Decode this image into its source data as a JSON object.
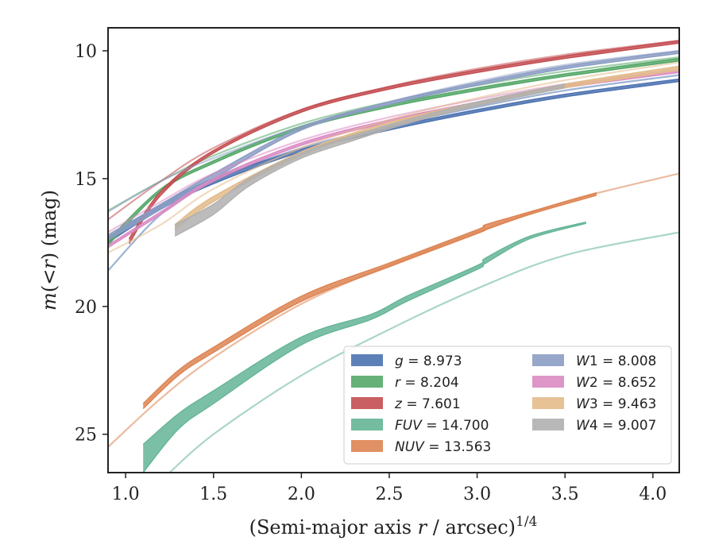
{
  "chart_data": {
    "type": "line",
    "xlabel": "(Semi-major axis r / arcsec)",
    "xlabel_parts": {
      "pre": "(Semi-major axis ",
      "var": "r",
      "post": " / arcsec)",
      "sup": "1/4"
    },
    "ylabel": "m(<r) (mag)",
    "ylabel_parts": {
      "m": "m",
      "open": "(<",
      "r": "r",
      "close": ") (mag)"
    },
    "xlim": [
      0.9,
      4.15
    ],
    "ylim": [
      26.5,
      9.1
    ],
    "y_inverted": true,
    "xticks": [
      1.0,
      1.5,
      2.0,
      2.5,
      3.0,
      3.5,
      4.0
    ],
    "xtick_labels": [
      "1.0",
      "1.5",
      "2.0",
      "2.5",
      "3.0",
      "3.5",
      "4.0"
    ],
    "yticks": [
      10,
      15,
      20,
      25
    ],
    "ytick_labels": [
      "10",
      "15",
      "20",
      "25"
    ],
    "grid": false,
    "legend_placement": "lower-right",
    "series": [
      {
        "name": "g",
        "legend_label": "g = 8.973",
        "color": "#4c72b0",
        "profile": {
          "x": [
            0.9,
            1.2,
            1.5,
            2.0,
            2.5,
            3.0,
            3.5,
            4.15
          ],
          "y": [
            18.6,
            16.4,
            15.1,
            13.8,
            12.95,
            12.2,
            11.55,
            10.95
          ]
        },
        "band": {
          "x": [
            0.9,
            1.2,
            1.5,
            2.0,
            2.5,
            3.0,
            3.5,
            4.15
          ],
          "y1": [
            17.3,
            16.0,
            15.0,
            13.85,
            13.0,
            12.3,
            11.7,
            11.1
          ],
          "y2": [
            17.5,
            16.2,
            15.2,
            13.95,
            13.1,
            12.4,
            11.8,
            11.2
          ]
        }
      },
      {
        "name": "r",
        "legend_label": "r = 8.204",
        "color": "#55a868",
        "profile": {
          "x": [
            0.9,
            1.2,
            1.5,
            2.0,
            2.5,
            3.0,
            3.5,
            4.15
          ],
          "y": [
            16.25,
            15.1,
            14.1,
            12.85,
            12.0,
            11.35,
            10.8,
            10.25
          ]
        },
        "band": {
          "x": [
            0.9,
            1.2,
            1.5,
            2.0,
            2.5,
            3.0,
            3.5,
            4.15
          ],
          "y1": [
            17.4,
            15.4,
            14.3,
            12.95,
            12.1,
            11.45,
            10.9,
            10.3
          ],
          "y2": [
            17.6,
            15.5,
            14.4,
            13.05,
            12.2,
            11.55,
            11.0,
            10.4
          ]
        }
      },
      {
        "name": "z",
        "legend_label": "z = 7.601",
        "color": "#c44e52",
        "profile": {
          "x": [
            0.9,
            1.2,
            1.5,
            2.0,
            2.5,
            3.0,
            3.5,
            4.15
          ],
          "y": [
            16.6,
            15.1,
            13.8,
            12.3,
            11.4,
            10.7,
            10.15,
            9.6
          ]
        },
        "band": {
          "x": [
            1.02,
            1.2,
            1.5,
            2.0,
            2.5,
            3.0,
            3.5,
            4.15
          ],
          "y1": [
            17.35,
            15.5,
            13.9,
            12.3,
            11.4,
            10.75,
            10.2,
            9.6
          ],
          "y2": [
            17.55,
            15.65,
            14.0,
            12.4,
            11.5,
            10.85,
            10.3,
            9.7
          ]
        }
      },
      {
        "name": "FUV",
        "legend_label": "FUV = 14.700",
        "color": "#64b596",
        "profile": {
          "x": [
            1.25,
            1.5,
            2.0,
            2.5,
            3.0,
            3.5,
            4.15
          ],
          "y": [
            26.5,
            25.0,
            22.7,
            20.9,
            19.3,
            18.0,
            17.1
          ]
        },
        "band": {
          "x": [
            1.1,
            1.3,
            1.5,
            2.0,
            2.4,
            2.6,
            3.0,
            3.05,
            3.3,
            3.62
          ],
          "y1": [
            25.4,
            24.2,
            23.3,
            21.2,
            20.3,
            19.6,
            18.4,
            18.1,
            17.25,
            16.7
          ],
          "y2": [
            26.5,
            24.8,
            23.8,
            21.5,
            20.5,
            19.8,
            18.55,
            18.3,
            17.35,
            16.75
          ]
        }
      },
      {
        "name": "NUV",
        "legend_label": "NUV = 13.563",
        "color": "#dd8452",
        "profile": {
          "x": [
            0.9,
            1.2,
            1.5,
            2.0,
            2.5,
            3.0,
            3.5,
            4.15
          ],
          "y": [
            25.5,
            23.6,
            22.0,
            19.9,
            18.4,
            17.1,
            15.9,
            14.8
          ]
        },
        "band": {
          "x": [
            1.1,
            1.3,
            1.5,
            2.0,
            2.5,
            3.0,
            3.05,
            3.3,
            3.68
          ],
          "y1": [
            23.8,
            22.5,
            21.6,
            19.6,
            18.3,
            17.0,
            16.8,
            16.3,
            15.55
          ],
          "y2": [
            24.0,
            22.7,
            21.8,
            19.8,
            18.45,
            17.15,
            17.0,
            16.4,
            15.65
          ]
        }
      },
      {
        "name": "W1",
        "legend_label": "W1 = 8.008",
        "color": "#8c9dc4",
        "profile": {
          "x": [
            0.9,
            1.2,
            1.5,
            2.0,
            2.5,
            3.0,
            3.5,
            4.15
          ],
          "y": [
            16.3,
            15.1,
            14.2,
            12.95,
            12.0,
            11.2,
            10.55,
            10.0
          ]
        },
        "band": {
          "x": [
            0.9,
            1.2,
            1.5,
            2.0,
            2.5,
            3.0,
            3.5,
            4.15
          ],
          "y1": [
            17.2,
            16.0,
            14.8,
            13.0,
            12.0,
            11.25,
            10.6,
            10.0
          ],
          "y2": [
            17.4,
            16.2,
            15.0,
            13.1,
            12.1,
            11.35,
            10.7,
            10.1
          ]
        }
      },
      {
        "name": "W2",
        "legend_label": "W2 = 8.652",
        "color": "#da8bc3",
        "profile": {
          "x": [
            0.9,
            1.2,
            1.5,
            2.0,
            2.5,
            3.0,
            3.5,
            4.15
          ],
          "y": [
            17.1,
            15.9,
            14.8,
            13.5,
            12.6,
            11.9,
            11.3,
            10.7
          ]
        },
        "band": {
          "x": [
            0.9,
            1.2,
            1.5,
            2.0,
            2.5,
            3.0,
            3.5,
            4.15
          ],
          "y1": [
            17.6,
            16.3,
            15.0,
            13.6,
            12.7,
            12.0,
            11.35,
            10.75
          ],
          "y2": [
            17.7,
            16.4,
            15.1,
            13.7,
            12.8,
            12.1,
            11.45,
            10.85
          ]
        }
      },
      {
        "name": "W3",
        "legend_label": "W3 = 9.463",
        "color": "#e3bb8a",
        "profile": {
          "x": [
            0.9,
            1.2,
            1.5,
            2.0,
            2.5,
            3.0,
            3.5,
            4.15
          ],
          "y": [
            17.9,
            16.8,
            15.4,
            13.8,
            12.7,
            11.85,
            11.15,
            10.45
          ]
        },
        "band": {
          "x": [
            1.28,
            1.5,
            2.0,
            2.5,
            3.0,
            3.5,
            4.15
          ],
          "y1": [
            16.8,
            15.7,
            13.95,
            12.8,
            12.0,
            11.3,
            10.6
          ],
          "y2": [
            17.0,
            15.9,
            14.1,
            12.95,
            12.15,
            11.45,
            10.75
          ]
        }
      },
      {
        "name": "W4",
        "legend_label": "W4 = 9.007",
        "color": "#b0b0b0",
        "profile": null,
        "band": {
          "x": [
            1.28,
            1.5,
            1.7,
            2.0,
            2.3,
            2.6,
            3.0,
            3.5
          ],
          "y1": [
            16.8,
            16.0,
            15.0,
            14.0,
            13.3,
            12.7,
            12.0,
            11.3
          ],
          "y2": [
            17.25,
            16.4,
            15.3,
            14.2,
            13.5,
            12.85,
            12.15,
            11.45
          ]
        }
      }
    ]
  }
}
